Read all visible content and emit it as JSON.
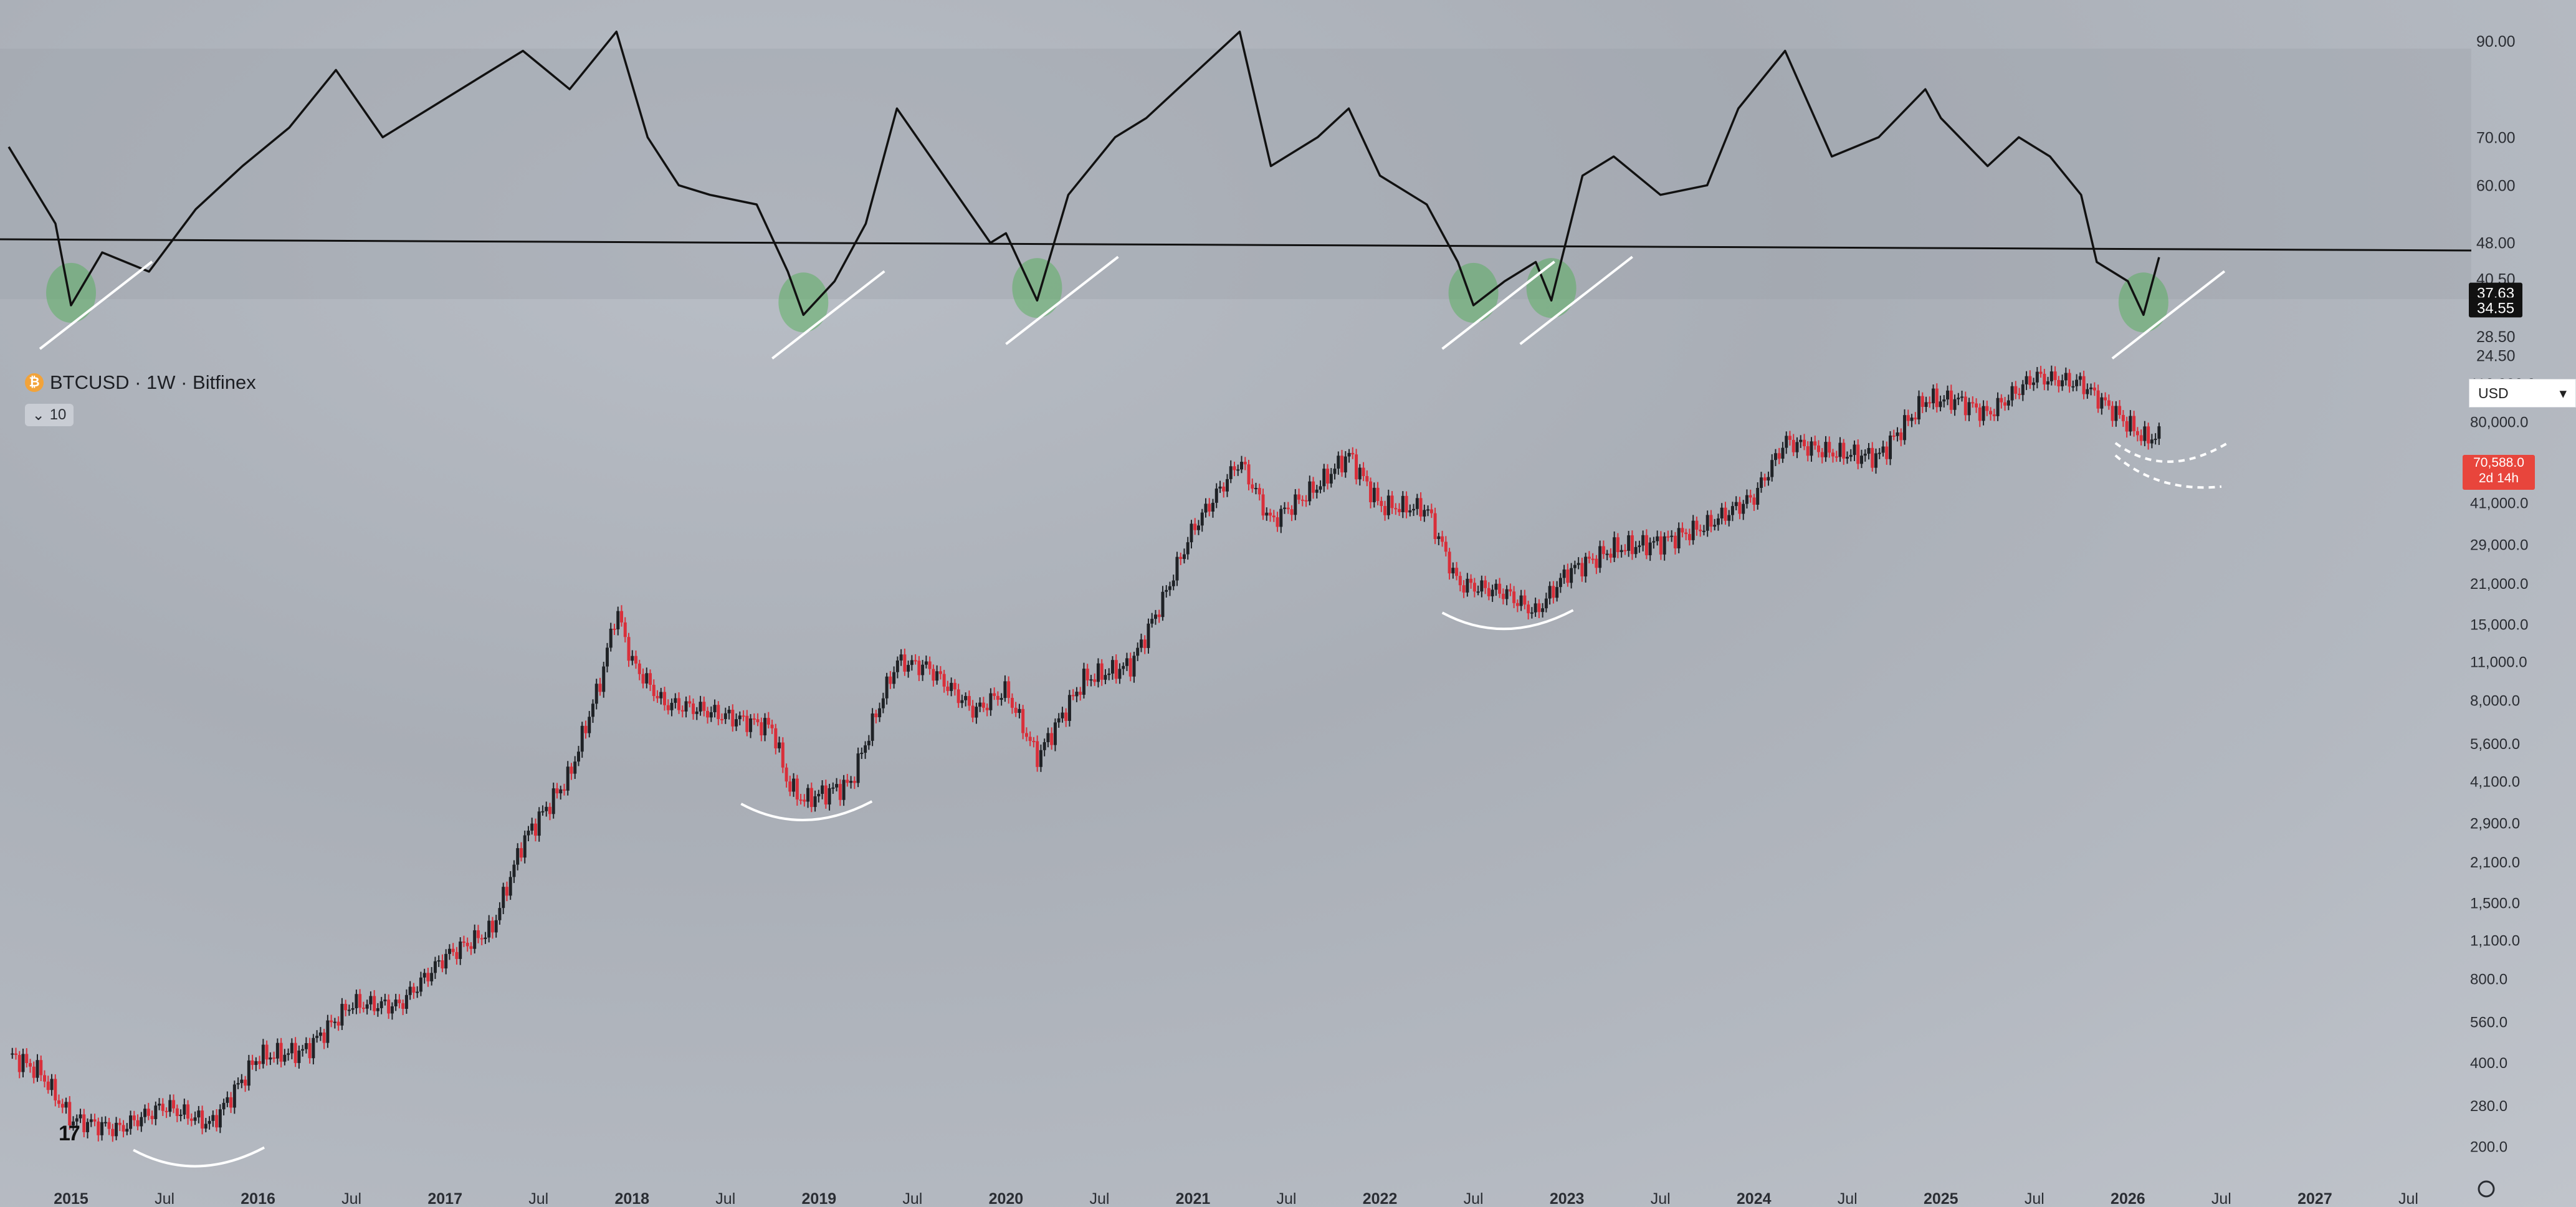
{
  "symbol": {
    "name": "BTCUSD · 1W · Bitfinex",
    "icon": "bitcoin-icon",
    "indicator_count": "10"
  },
  "currency": {
    "label": "USD",
    "icon": "chevron-down-icon"
  },
  "last_price": {
    "value": "70,588.0",
    "countdown": "2d 14h",
    "color": "#e8453c"
  },
  "logo": {
    "text": "17",
    "icon": "tradingview-logo"
  },
  "colors": {
    "up": "#1f2226",
    "down": "#d92f3a",
    "band": "#9aa0a8",
    "highlight": "#4caf50",
    "annotation": "#ffffff"
  },
  "chart_data": [
    {
      "type": "line",
      "name": "oscillator",
      "y_ticks": [
        "90.00",
        "70.00",
        "60.00",
        "48.00",
        "40.50",
        "28.50",
        "24.50"
      ],
      "levels": [
        "37.63",
        "34.55"
      ],
      "ylim": [
        22,
        96
      ],
      "band": [
        32,
        77
      ],
      "x": [
        "2014-09",
        "2014-12",
        "2015-01",
        "2015-03",
        "2015-06",
        "2015-09",
        "2015-12",
        "2016-03",
        "2016-06",
        "2016-09",
        "2016-12",
        "2017-03",
        "2017-06",
        "2017-09",
        "2017-12",
        "2018-02",
        "2018-04",
        "2018-06",
        "2018-09",
        "2018-11",
        "2018-12",
        "2019-02",
        "2019-04",
        "2019-06",
        "2019-09",
        "2019-12",
        "2020-01",
        "2020-03",
        "2020-05",
        "2020-08",
        "2020-10",
        "2020-12",
        "2021-02",
        "2021-04",
        "2021-06",
        "2021-09",
        "2021-11",
        "2022-01",
        "2022-04",
        "2022-06",
        "2022-07",
        "2022-09",
        "2022-11",
        "2022-12",
        "2023-02",
        "2023-04",
        "2023-07",
        "2023-10",
        "2023-12",
        "2024-03",
        "2024-06",
        "2024-09",
        "2024-12",
        "2025-01",
        "2025-04",
        "2025-06",
        "2025-08",
        "2025-10",
        "2025-11",
        "2026-01",
        "2026-02",
        "2026-03"
      ],
      "y": [
        68,
        52,
        35,
        46,
        42,
        55,
        64,
        72,
        84,
        70,
        76,
        82,
        88,
        80,
        92,
        70,
        60,
        58,
        56,
        42,
        33,
        40,
        52,
        76,
        62,
        48,
        50,
        36,
        58,
        70,
        74,
        80,
        86,
        92,
        64,
        70,
        76,
        62,
        56,
        44,
        35,
        40,
        44,
        36,
        62,
        66,
        58,
        60,
        76,
        88,
        66,
        70,
        80,
        74,
        64,
        70,
        66,
        58,
        44,
        40,
        33,
        45
      ]
    },
    {
      "type": "candlestick",
      "name": "BTCUSD",
      "log_scale": true,
      "y_ticks": [
        "110,000.0",
        "80,000.0",
        "58,000.0",
        "41,000.0",
        "29,000.0",
        "21,000.0",
        "15,000.0",
        "11,000.0",
        "8,000.0",
        "5,600.0",
        "4,100.0",
        "2,900.0",
        "2,100.0",
        "1,500.0",
        "1,100.0",
        "800.0",
        "560.0",
        "400.0",
        "280.0",
        "200.0"
      ],
      "x_ticks": [
        "2015",
        "Jul",
        "2016",
        "Jul",
        "2017",
        "Jul",
        "2018",
        "Jul",
        "2019",
        "Jul",
        "2020",
        "Jul",
        "2021",
        "Jul",
        "2022",
        "Jul",
        "2023",
        "Jul",
        "2024",
        "Jul",
        "2025",
        "Jul",
        "2026",
        "Jul",
        "2027",
        "Jul"
      ],
      "ylim": [
        180,
        125000
      ],
      "x": [
        "2014-09",
        "2014-11",
        "2015-01",
        "2015-04",
        "2015-07",
        "2015-10",
        "2016-01",
        "2016-04",
        "2016-07",
        "2016-10",
        "2017-01",
        "2017-04",
        "2017-06",
        "2017-09",
        "2017-11",
        "2017-12",
        "2018-01",
        "2018-03",
        "2018-05",
        "2018-08",
        "2018-10",
        "2018-11",
        "2018-12",
        "2019-03",
        "2019-05",
        "2019-06",
        "2019-08",
        "2019-11",
        "2020-01",
        "2020-03",
        "2020-06",
        "2020-09",
        "2020-11",
        "2021-01",
        "2021-04",
        "2021-06",
        "2021-09",
        "2021-11",
        "2022-01",
        "2022-04",
        "2022-06",
        "2022-09",
        "2022-11",
        "2023-01",
        "2023-04",
        "2023-07",
        "2023-10",
        "2024-01",
        "2024-03",
        "2024-06",
        "2024-09",
        "2024-12",
        "2025-02",
        "2025-04",
        "2025-07",
        "2025-10",
        "2025-12",
        "2026-02",
        "2026-03"
      ],
      "close": [
        430,
        370,
        250,
        230,
        280,
        240,
        420,
        440,
        650,
        640,
        960,
        1200,
        2500,
        4300,
        9500,
        17000,
        11000,
        7800,
        7500,
        6800,
        6400,
        4000,
        3500,
        4000,
        8000,
        11000,
        10500,
        7300,
        8700,
        5000,
        9500,
        10700,
        18000,
        33000,
        58000,
        35000,
        47000,
        61000,
        40000,
        39000,
        21000,
        19500,
        16500,
        23000,
        28000,
        29500,
        34000,
        43000,
        68000,
        62000,
        60000,
        96000,
        96000,
        85000,
        116000,
        110000,
        88000,
        70000,
        70588
      ]
    }
  ]
}
